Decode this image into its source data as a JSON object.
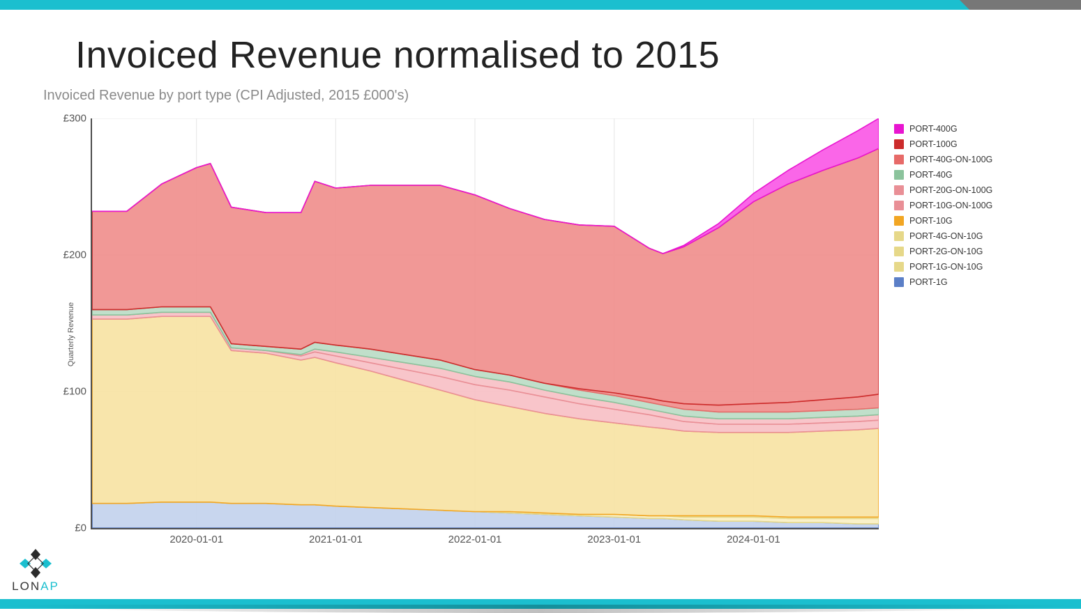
{
  "slide": {
    "title": "Invoiced Revenue normalised to 2015",
    "subtitle": "Invoiced Revenue by port type (CPI Adjusted, 2015 £000's)",
    "accent_color": "#1bbfcf",
    "top_grey_color": "#777777",
    "background_color": "#ffffff"
  },
  "logo": {
    "text_plain": "LON",
    "text_accent": "AP",
    "diamond_dark": "#2b2b2b",
    "diamond_accent": "#1bbfcf"
  },
  "chart": {
    "type": "stacked-area",
    "ylabel": "Quarterly Revenue",
    "y_currency_prefix": "£",
    "ylim": [
      0,
      300
    ],
    "ytick_step": 100,
    "yticks": [
      0,
      100,
      200,
      300
    ],
    "grid_color": "#e5e5e5",
    "axis_color": "#4d4d4d",
    "tick_fontsize": 15,
    "ylabel_fontsize": 11,
    "x_domain": [
      2019.25,
      2024.9
    ],
    "x_tick_years": [
      2020,
      2021,
      2022,
      2023,
      2024
    ],
    "x_tick_format": "{YEAR}-01-01",
    "series_order_bottom_up": [
      "PORT-1G",
      "PORT-1G-ON-10G",
      "PORT-2G-ON-10G",
      "PORT-4G-ON-10G",
      "PORT-10G",
      "PORT-10G-ON-100G",
      "PORT-20G-ON-100G",
      "PORT-40G",
      "PORT-40G-ON-100G",
      "PORT-100G",
      "PORT-400G"
    ],
    "legend_order_top_down": [
      "PORT-400G",
      "PORT-100G",
      "PORT-40G-ON-100G",
      "PORT-40G",
      "PORT-20G-ON-100G",
      "PORT-10G-ON-100G",
      "PORT-10G",
      "PORT-4G-ON-10G",
      "PORT-2G-ON-10G",
      "PORT-1G-ON-10G",
      "PORT-1G"
    ],
    "colors": {
      "PORT-400G": {
        "fill": "#f955e6",
        "stroke": "#e815d0"
      },
      "PORT-100G": {
        "fill": "#ef8d8b",
        "stroke": "#cc2b2b"
      },
      "PORT-40G-ON-100G": {
        "fill": "#ef8d8b",
        "stroke": "#e76a68"
      },
      "PORT-40G": {
        "fill": "#b9dbc4",
        "stroke": "#8bc39c"
      },
      "PORT-20G-ON-100G": {
        "fill": "#f7bfc4",
        "stroke": "#e98f96"
      },
      "PORT-10G-ON-100G": {
        "fill": "#f7bfc4",
        "stroke": "#e98f96"
      },
      "PORT-10G": {
        "fill": "#f7e2a2",
        "stroke": "#f2a623"
      },
      "PORT-4G-ON-10G": {
        "fill": "#faefc2",
        "stroke": "#e6d889"
      },
      "PORT-2G-ON-10G": {
        "fill": "#faefc2",
        "stroke": "#e6d889"
      },
      "PORT-1G-ON-10G": {
        "fill": "#faefc2",
        "stroke": "#e6d889"
      },
      "PORT-1G": {
        "fill": "#c2d1ec",
        "stroke": "#5b7fc7"
      }
    },
    "x_samples": [
      2019.25,
      2019.5,
      2019.75,
      2020.0,
      2020.1,
      2020.25,
      2020.5,
      2020.75,
      2020.85,
      2021.0,
      2021.25,
      2021.5,
      2021.75,
      2022.0,
      2022.25,
      2022.5,
      2022.75,
      2023.0,
      2023.25,
      2023.35,
      2023.5,
      2023.75,
      2024.0,
      2024.25,
      2024.5,
      2024.75,
      2024.9
    ],
    "stacked_values": {
      "PORT-1G": [
        18,
        18,
        19,
        19,
        19,
        18,
        18,
        17,
        17,
        16,
        15,
        14,
        13,
        12,
        11,
        10,
        9,
        8,
        7,
        7,
        6,
        5,
        5,
        4,
        4,
        3,
        3
      ],
      "PORT-1G-ON-10G": [
        0,
        0,
        0,
        0,
        0,
        0,
        0,
        0,
        0,
        0,
        0,
        0,
        0,
        0,
        1,
        1,
        1,
        2,
        2,
        2,
        2,
        3,
        3,
        3,
        3,
        4,
        4
      ],
      "PORT-2G-ON-10G": [
        0,
        0,
        0,
        0,
        0,
        0,
        0,
        0,
        0,
        0,
        0,
        0,
        0,
        0,
        0,
        0,
        0,
        0,
        0,
        0,
        1,
        1,
        1,
        1,
        1,
        1,
        1
      ],
      "PORT-4G-ON-10G": [
        0,
        0,
        0,
        0,
        0,
        0,
        0,
        0,
        0,
        0,
        0,
        0,
        0,
        0,
        0,
        0,
        0,
        0,
        0,
        0,
        0,
        0,
        0,
        0,
        0,
        0,
        0
      ],
      "PORT-10G": [
        135,
        135,
        136,
        136,
        136,
        112,
        110,
        106,
        108,
        105,
        100,
        94,
        88,
        82,
        77,
        73,
        70,
        67,
        65,
        64,
        62,
        61,
        61,
        62,
        63,
        64,
        65
      ],
      "PORT-10G-ON-100G": [
        3,
        3,
        3,
        3,
        3,
        2,
        2,
        3,
        4,
        5,
        6,
        8,
        10,
        11,
        12,
        12,
        11,
        10,
        9,
        8,
        7,
        6,
        6,
        6,
        6,
        6,
        6
      ],
      "PORT-20G-ON-100G": [
        0,
        0,
        0,
        0,
        0,
        0,
        0,
        1,
        2,
        3,
        4,
        5,
        6,
        6,
        6,
        5,
        5,
        5,
        4,
        4,
        4,
        4,
        4,
        4,
        4,
        4,
        4
      ],
      "PORT-40G": [
        4,
        4,
        4,
        4,
        4,
        3,
        3,
        4,
        5,
        5,
        6,
        6,
        6,
        5,
        5,
        5,
        5,
        5,
        5,
        5,
        5,
        5,
        5,
        5,
        5,
        5,
        5
      ],
      "PORT-40G-ON-100G": [
        0,
        0,
        0,
        0,
        0,
        0,
        0,
        0,
        0,
        0,
        0,
        0,
        0,
        0,
        0,
        0,
        1,
        2,
        3,
        3,
        4,
        5,
        6,
        7,
        8,
        9,
        10
      ],
      "PORT-100G": [
        72,
        72,
        90,
        102,
        105,
        100,
        98,
        100,
        118,
        115,
        120,
        124,
        128,
        128,
        122,
        120,
        120,
        122,
        110,
        108,
        115,
        130,
        148,
        160,
        168,
        175,
        180
      ],
      "PORT-400G": [
        0,
        0,
        0,
        0,
        0,
        0,
        0,
        0,
        0,
        0,
        0,
        0,
        0,
        0,
        0,
        0,
        0,
        0,
        0,
        0,
        1,
        3,
        6,
        10,
        15,
        20,
        22
      ]
    },
    "line_width": 1.6,
    "fill_opacity": 0.9
  }
}
